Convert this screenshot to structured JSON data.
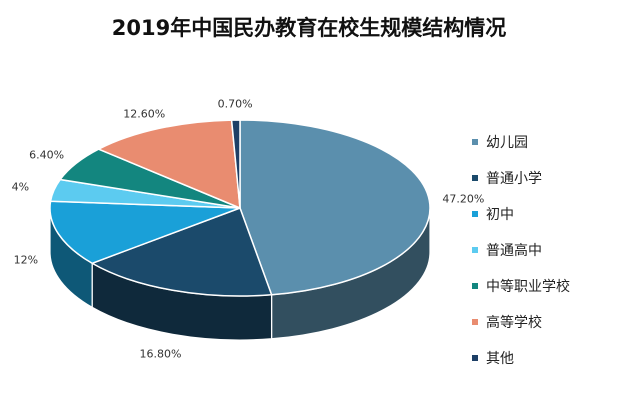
{
  "chart_data": {
    "type": "pie",
    "title": "2019年中国民办教育在校生规模结构情况",
    "categories": [
      "幼儿园",
      "普通小学",
      "初中",
      "普通高中",
      "中等职业学校",
      "高等学校",
      "其他"
    ],
    "values": [
      47.2,
      16.8,
      12,
      4,
      6.4,
      12.6,
      0.7
    ],
    "labels": [
      "47.20%",
      "16.80%",
      "12%",
      "4%",
      "6.40%",
      "12.60%",
      "0.70%"
    ],
    "colors": [
      "#5b8fad",
      "#1b4a6b",
      "#1aa0d8",
      "#5ccbf0",
      "#13867f",
      "#e98c70",
      "#1d3f66"
    ],
    "legend_position": "right",
    "style": "3d"
  }
}
